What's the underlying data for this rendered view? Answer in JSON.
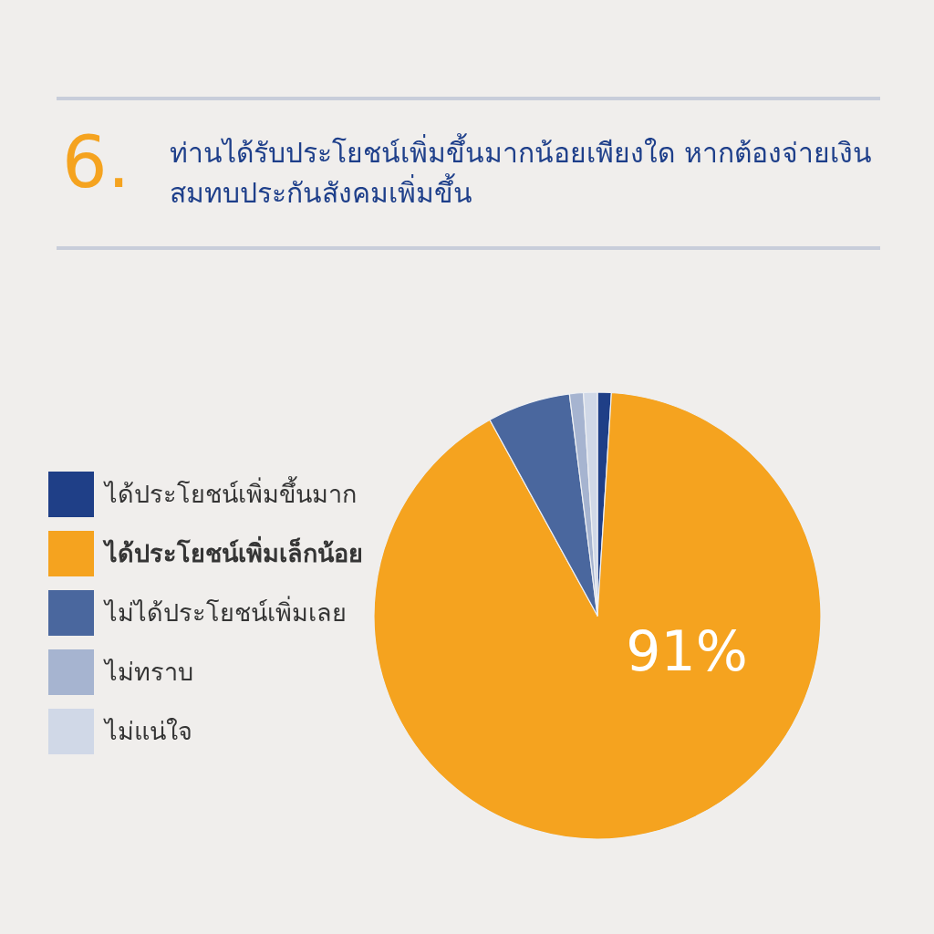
{
  "chart_data": {
    "type": "pie",
    "title": "ท่านได้รับประโยชน์เพิ่มขึ้นมากน้อยเพียงใด หากต้องจ่ายเงินสมทบประกันสังคมเพิ่มขึ้น",
    "annotations": [
      "6."
    ],
    "categories": [
      "ได้ประโยชน์เพิ่มขึ้นมาก",
      "ได้ประโยชน์เพิ่มเล็กน้อย",
      "ไม่ได้ประโยชน์เพิ่มเลย",
      "ไม่ทราบ",
      "ไม่แน่ใจ"
    ],
    "values": [
      1,
      91,
      6,
      1,
      1
    ],
    "colors": [
      "#1f3f87",
      "#f5a31f",
      "#4a679e",
      "#a6b4d0",
      "#d0d8e7"
    ],
    "value_labels": [
      null,
      "91%",
      null,
      null,
      null
    ],
    "legend": "left"
  }
}
